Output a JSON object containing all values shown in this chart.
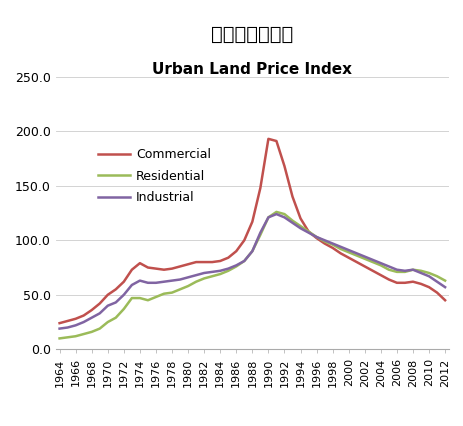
{
  "title_jp": "市街地価格指数",
  "title_en": "Urban Land Price Index",
  "years": [
    1964,
    1965,
    1966,
    1967,
    1968,
    1969,
    1970,
    1971,
    1972,
    1973,
    1974,
    1975,
    1976,
    1977,
    1978,
    1979,
    1980,
    1981,
    1982,
    1983,
    1984,
    1985,
    1986,
    1987,
    1988,
    1989,
    1990,
    1991,
    1992,
    1993,
    1994,
    1995,
    1996,
    1997,
    1998,
    1999,
    2000,
    2001,
    2002,
    2003,
    2004,
    2005,
    2006,
    2007,
    2008,
    2009,
    2010,
    2011,
    2012
  ],
  "commercial": [
    24,
    26,
    28,
    31,
    36,
    42,
    50,
    55,
    62,
    73,
    79,
    75,
    74,
    73,
    74,
    76,
    78,
    80,
    80,
    80,
    81,
    84,
    90,
    100,
    117,
    148,
    193,
    191,
    168,
    140,
    120,
    108,
    102,
    97,
    93,
    88,
    84,
    80,
    76,
    72,
    68,
    64,
    61,
    61,
    62,
    60,
    57,
    52,
    45
  ],
  "residential": [
    10,
    11,
    12,
    14,
    16,
    19,
    25,
    29,
    37,
    47,
    47,
    45,
    48,
    51,
    52,
    55,
    58,
    62,
    65,
    67,
    69,
    72,
    76,
    81,
    90,
    105,
    121,
    126,
    124,
    118,
    113,
    108,
    103,
    99,
    96,
    92,
    89,
    86,
    83,
    80,
    77,
    73,
    71,
    71,
    73,
    72,
    70,
    67,
    63
  ],
  "industrial": [
    19,
    20,
    22,
    25,
    29,
    33,
    40,
    43,
    50,
    59,
    63,
    61,
    61,
    62,
    63,
    64,
    66,
    68,
    70,
    71,
    72,
    74,
    77,
    81,
    90,
    107,
    121,
    124,
    121,
    116,
    111,
    107,
    103,
    100,
    97,
    94,
    91,
    88,
    85,
    82,
    79,
    76,
    73,
    72,
    73,
    70,
    67,
    62,
    57
  ],
  "commercial_color": "#C0504D",
  "residential_color": "#9BBB59",
  "industrial_color": "#8064A2",
  "ylim": [
    0,
    250
  ],
  "yticks": [
    0.0,
    50.0,
    100.0,
    150.0,
    200.0,
    250.0
  ],
  "xtick_years": [
    1964,
    1966,
    1968,
    1970,
    1972,
    1974,
    1976,
    1978,
    1980,
    1982,
    1984,
    1986,
    1988,
    1990,
    1992,
    1994,
    1996,
    1998,
    2000,
    2002,
    2004,
    2006,
    2008,
    2010,
    2012
  ],
  "background_color": "#ffffff",
  "legend_labels": [
    "Commercial",
    "Residential",
    "Industrial"
  ]
}
